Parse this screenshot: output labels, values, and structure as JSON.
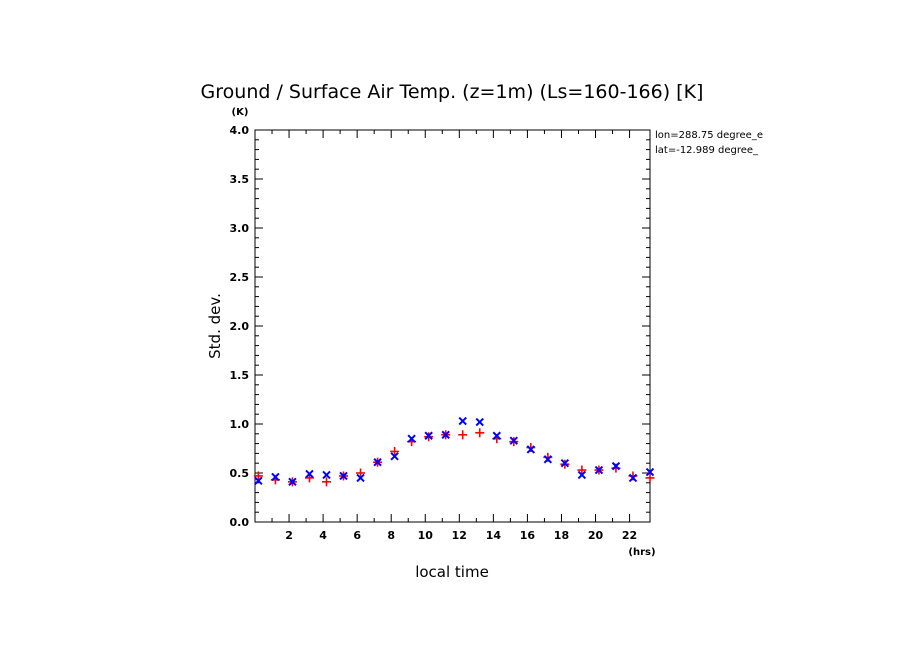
{
  "chart_data": {
    "type": "scatter",
    "title": "Ground / Surface Air Temp. (z=1m) (Ls=160-166) [K]",
    "xlabel": "local time",
    "ylabel": "Std. dev.",
    "x_unit": "(hrs)",
    "y_unit": "(K)",
    "xlim": [
      0,
      23.2
    ],
    "ylim": [
      0,
      4.0
    ],
    "x_ticks": [
      2,
      4,
      6,
      8,
      10,
      12,
      14,
      16,
      18,
      20,
      22
    ],
    "x_tick_labels": [
      "2",
      "4",
      "6",
      "8",
      "10",
      "12",
      "14",
      "16",
      "18",
      "20",
      "22"
    ],
    "y_ticks": [
      0.0,
      0.5,
      1.0,
      1.5,
      2.0,
      2.5,
      3.0,
      3.5,
      4.0
    ],
    "y_tick_labels": [
      "0.0",
      "0.5",
      "1.0",
      "1.5",
      "2.0",
      "2.5",
      "3.0",
      "3.5",
      "4.0"
    ],
    "annotations": [
      "lon=288.75 degree_e",
      "lat=-12.989 degree_"
    ],
    "series": [
      {
        "name": "Ground",
        "marker": "plus",
        "color": "#ff0000",
        "x": [
          0.2,
          1.2,
          2.2,
          3.2,
          4.2,
          5.2,
          6.2,
          7.2,
          8.2,
          9.2,
          10.2,
          11.2,
          12.2,
          13.2,
          14.2,
          15.2,
          16.2,
          17.2,
          18.2,
          19.2,
          20.2,
          21.2,
          22.2,
          23.2
        ],
        "values": [
          0.47,
          0.43,
          0.41,
          0.45,
          0.41,
          0.47,
          0.5,
          0.61,
          0.72,
          0.82,
          0.87,
          0.89,
          0.89,
          0.91,
          0.85,
          0.82,
          0.76,
          0.66,
          0.59,
          0.53,
          0.53,
          0.55,
          0.47,
          0.45
        ]
      },
      {
        "name": "Surface Air",
        "marker": "cross",
        "color": "#0000ff",
        "x": [
          0.2,
          1.2,
          2.2,
          3.2,
          4.2,
          5.2,
          6.2,
          7.2,
          8.2,
          9.2,
          10.2,
          11.2,
          12.2,
          13.2,
          14.2,
          15.2,
          16.2,
          17.2,
          18.2,
          19.2,
          20.2,
          21.2,
          22.2,
          23.2
        ],
        "values": [
          0.42,
          0.46,
          0.41,
          0.49,
          0.48,
          0.47,
          0.45,
          0.61,
          0.67,
          0.85,
          0.88,
          0.89,
          1.03,
          1.02,
          0.88,
          0.83,
          0.74,
          0.64,
          0.6,
          0.48,
          0.53,
          0.57,
          0.45,
          0.51
        ]
      }
    ]
  }
}
